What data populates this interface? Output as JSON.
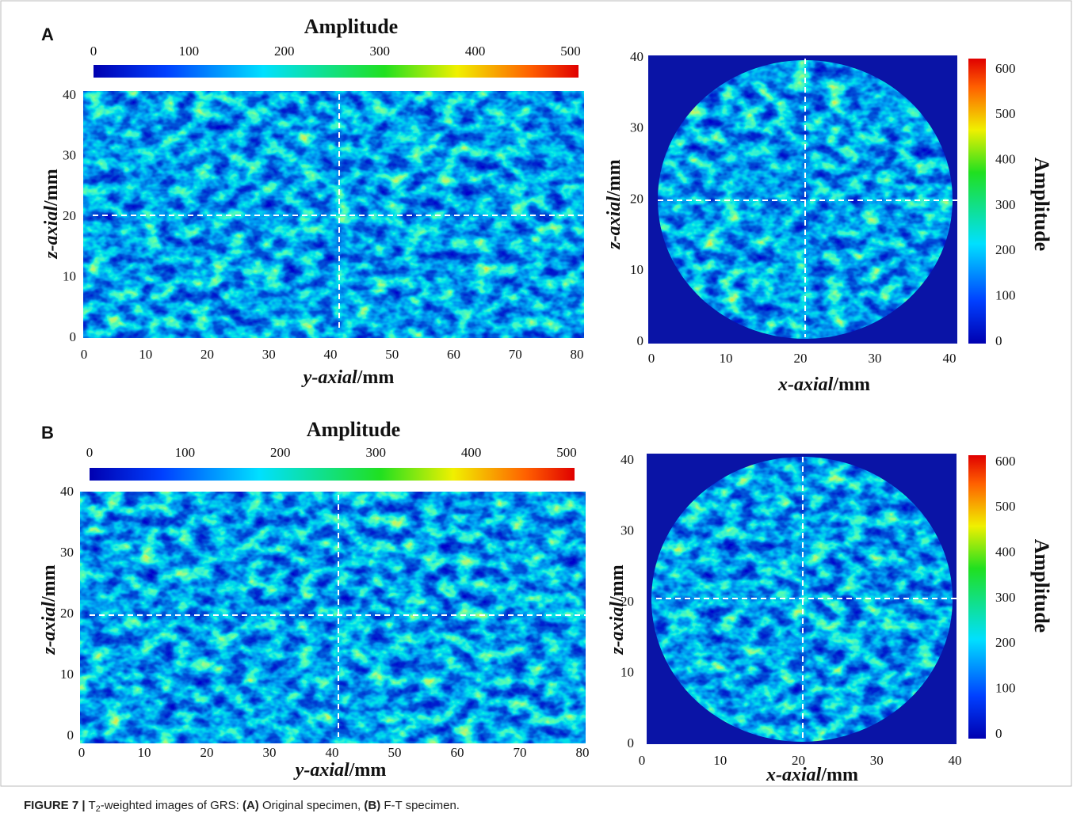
{
  "figure": {
    "panels": [
      {
        "label": "A",
        "left": {
          "colorbar_title": "Amplitude",
          "colorbar_ticks": [
            0,
            100,
            200,
            300,
            400,
            500
          ],
          "xlabel": "y-axial",
          "xunit": "/mm",
          "ylabel": "z-axial",
          "yunit": "/mm",
          "xticks": [
            0,
            10,
            20,
            30,
            40,
            50,
            60,
            70,
            80
          ],
          "yticks": [
            0,
            10,
            20,
            30,
            40
          ]
        },
        "right": {
          "colorbar_title": "Amplitude",
          "colorbar_ticks": [
            0,
            100,
            200,
            300,
            400,
            500,
            600
          ],
          "xlabel": "x-axial",
          "xunit": "/mm",
          "ylabel": "z-axial",
          "yunit": "/mm",
          "xticks": [
            0,
            10,
            20,
            30,
            40
          ],
          "yticks": [
            0,
            10,
            20,
            30,
            40
          ]
        }
      },
      {
        "label": "B",
        "left": {
          "colorbar_title": "Amplitude",
          "colorbar_ticks": [
            0,
            100,
            200,
            300,
            400,
            500
          ],
          "xlabel": "y-axial",
          "xunit": "/mm",
          "ylabel": "z-axial",
          "yunit": "/mm",
          "xticks": [
            0,
            10,
            20,
            30,
            40,
            50,
            60,
            70,
            80
          ],
          "yticks": [
            0,
            10,
            20,
            30,
            40
          ]
        },
        "right": {
          "colorbar_title": "Amplitude",
          "colorbar_ticks": [
            0,
            100,
            200,
            300,
            400,
            500,
            600
          ],
          "xlabel": "x-axial",
          "xunit": "/mm",
          "ylabel": "z-axial",
          "yunit": "/mm",
          "xticks": [
            0,
            10,
            20,
            30,
            40
          ],
          "yticks": [
            0,
            10,
            20,
            30,
            40
          ]
        }
      }
    ],
    "caption": {
      "label": "FIGURE 7 |",
      "t": " T",
      "sub": "2",
      "text1": "-weighted images of GRS: ",
      "a": "(A)",
      "text2": " Original specimen, ",
      "b": "(B)",
      "text3": " F-T specimen."
    }
  }
}
